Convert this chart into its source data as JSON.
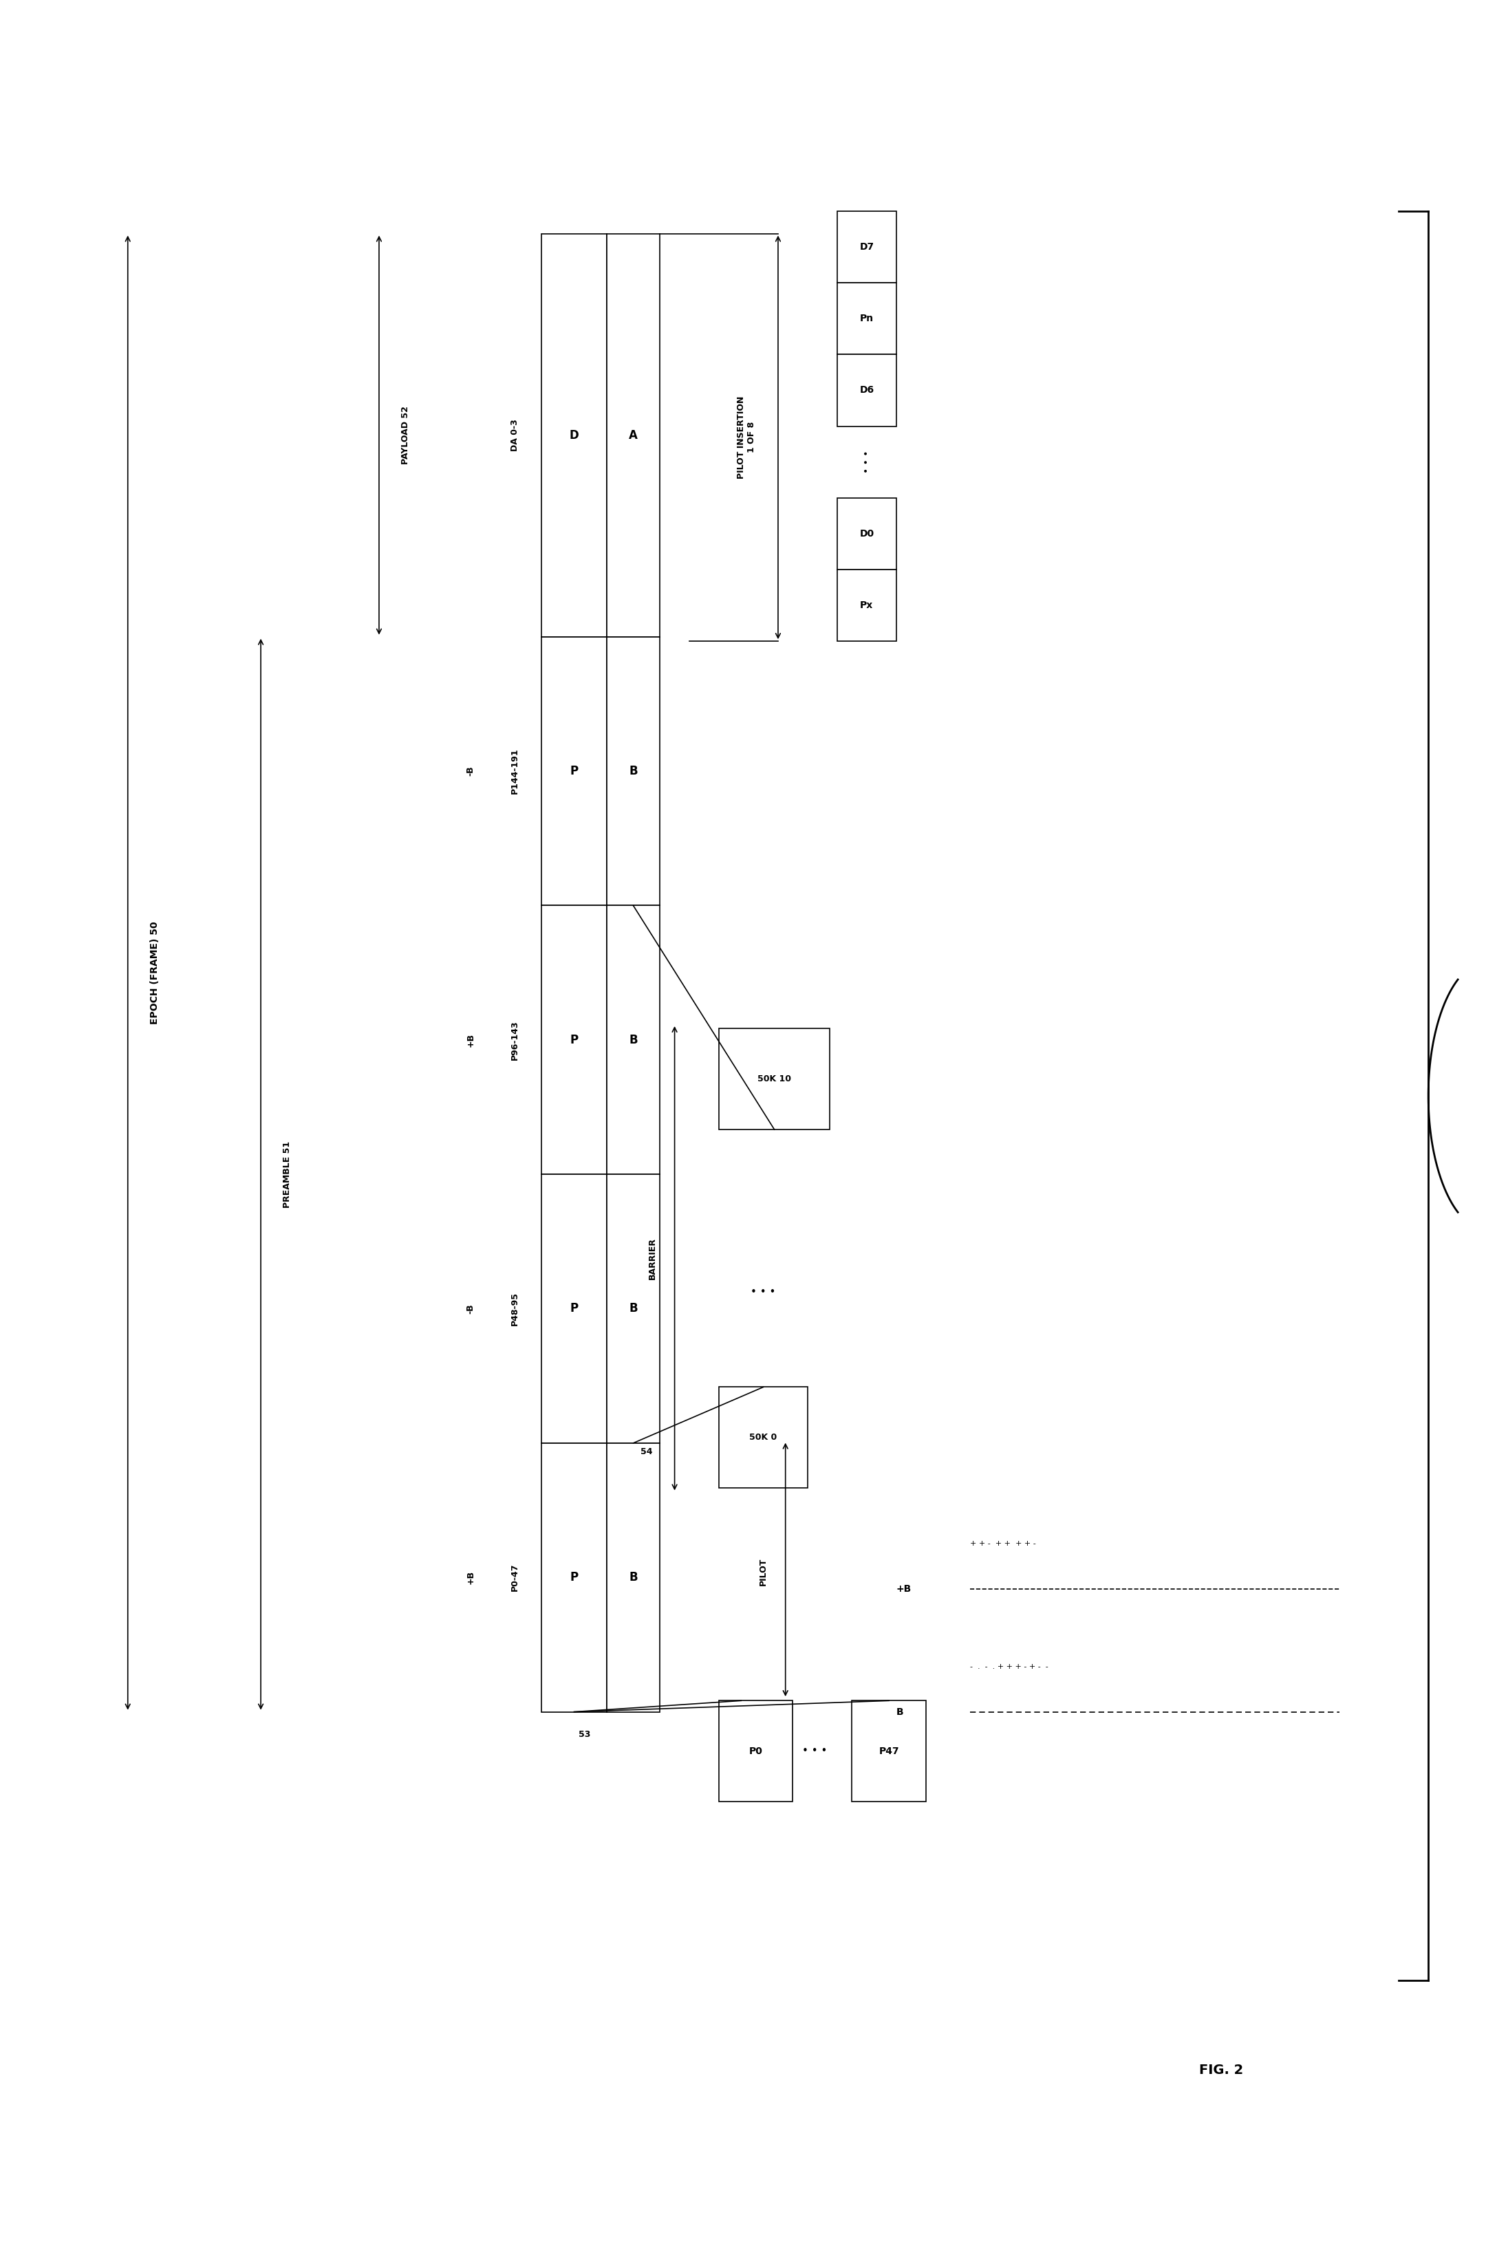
{
  "fig_width": 21.76,
  "fig_height": 32.84,
  "bg_color": "#ffffff",
  "title": "FIG. 2",
  "epoch_label": "EPOCH (FRAME) 50",
  "preamble_label": "PREAMBLE 51",
  "payload_label": "PAYLOAD 52",
  "segments": [
    {
      "label": "P0-47",
      "sub": "+B",
      "row1": "P",
      "row2": "B"
    },
    {
      "label": "P48-95",
      "sub": "-B",
      "row1": "P",
      "row2": "B"
    },
    {
      "label": "P96-143",
      "sub": "+B",
      "row1": "P",
      "row2": "B"
    },
    {
      "label": "P144-191",
      "sub": "-B",
      "row1": "P",
      "row2": "B"
    },
    {
      "label": "DA 0-3",
      "sub": "",
      "row1": "D",
      "row2": "A"
    }
  ],
  "pilot_label": "PILOT",
  "barrier_label": "BARRIER",
  "pilot_insert_label": "PILOT INSERTION\n1 OF 8",
  "label_53": "53",
  "label_54": "54",
  "legend_plusb": "+B",
  "legend_b": "B",
  "legend_plusb_line1": "+ + -  + +  + + -",
  "legend_b_line1": "-  .  -  . + + + - + - -",
  "fignum": "FIG. 2"
}
